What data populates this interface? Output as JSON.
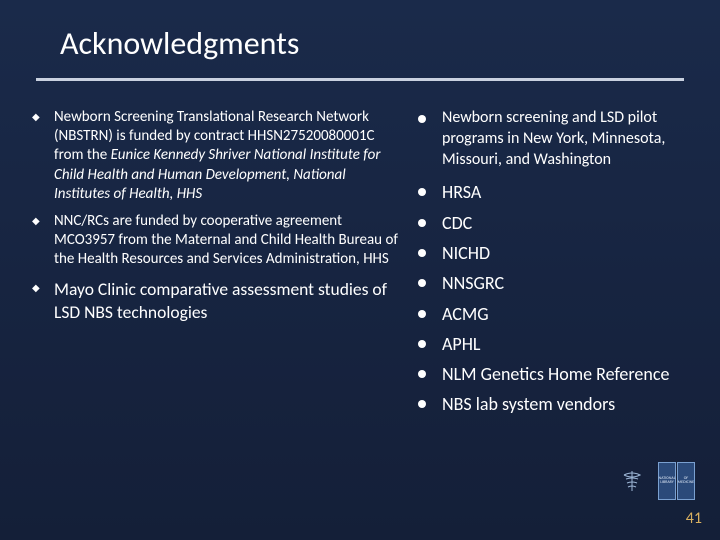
{
  "title": "Acknowledgments",
  "left_items": [
    {
      "size": "sm",
      "html": "Newborn Screening Translational Research Network (NBSTRN) is funded by contract HHSN27520080001C from the <span class='italic'>Eunice Kennedy Shriver National Institute for Child Health and Human Development, National Institutes of Health, HHS</span>"
    },
    {
      "size": "sm",
      "html": "NNC/RCs are funded by cooperative agreement MCO3957 from the Maternal and Child Health Bureau of the Health Resources and Services Administration, HHS"
    },
    {
      "size": "lg",
      "html": "Mayo Clinic comparative assessment studies of LSD NBS technologies"
    }
  ],
  "right_items": [
    {
      "size": "sm",
      "text": "Newborn screening and LSD pilot programs in New York, Minnesota, Missouri, and Washington"
    },
    {
      "size": "lg",
      "text": "HRSA"
    },
    {
      "size": "lg",
      "text": "CDC"
    },
    {
      "size": "lg",
      "text": "NICHD"
    },
    {
      "size": "lg",
      "text": "NNSGRC"
    },
    {
      "size": "lg",
      "text": "ACMG"
    },
    {
      "size": "lg",
      "text": "APHL"
    },
    {
      "size": "lg",
      "text": "NLM Genetics Home Reference"
    },
    {
      "size": "lg",
      "text": "NBS lab system vendors"
    }
  ],
  "page_number": "41",
  "colors": {
    "bg_top": "#1a2a4a",
    "bg_bottom": "#141f38",
    "text": "#ffffff",
    "rule": "#c9d1e0",
    "pagenum": "#d9b060"
  }
}
